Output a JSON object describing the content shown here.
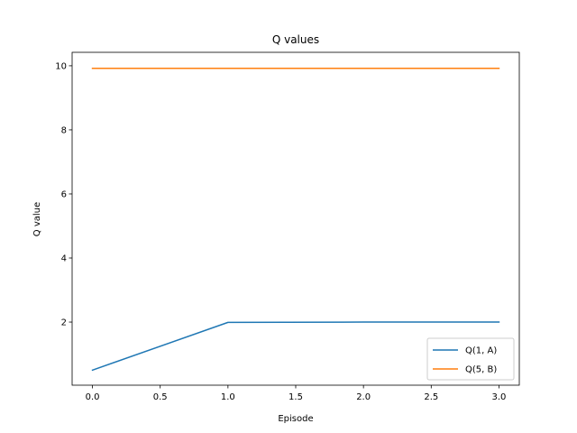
{
  "chart_data": {
    "type": "line",
    "title": "Q values",
    "xlabel": "Episode",
    "ylabel": "Q value",
    "xlim": [
      -0.15,
      3.15
    ],
    "ylim": [
      0.03,
      10.42
    ],
    "xticks": [
      0.0,
      0.5,
      1.0,
      1.5,
      2.0,
      2.5,
      3.0
    ],
    "xtick_labels": [
      "0.0",
      "0.5",
      "1.0",
      "1.5",
      "2.0",
      "2.5",
      "3.0"
    ],
    "yticks": [
      2,
      4,
      6,
      8,
      10
    ],
    "ytick_labels": [
      "2",
      "4",
      "6",
      "8",
      "10"
    ],
    "grid": false,
    "legend_position": "lower-right",
    "x": [
      0,
      1,
      2,
      3
    ],
    "series": [
      {
        "name": "Q(1, A)",
        "color": "#1f77b4",
        "values": [
          0.5,
          1.99,
          2.0,
          2.0
        ]
      },
      {
        "name": "Q(5, B)",
        "color": "#ff7f0e",
        "values": [
          9.92,
          9.92,
          9.92,
          9.92
        ]
      }
    ]
  }
}
